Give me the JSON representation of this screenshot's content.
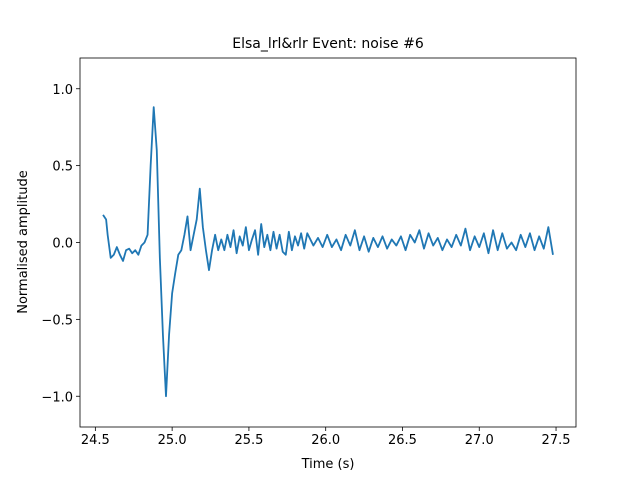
{
  "chart_data": {
    "type": "line",
    "title": "Elsa_lrl&rlr Event: noise #6",
    "xlabel": "Time (s)",
    "ylabel": "Normalised amplitude",
    "color": "#1f77b4",
    "xlim": [
      24.4,
      27.63
    ],
    "ylim": [
      -1.2,
      1.2
    ],
    "xticks": [
      24.5,
      {
        "value": 25,
        "label": "25.0"
      },
      25.5,
      {
        "value": 26,
        "label": "26.0"
      },
      26.5,
      {
        "value": 27,
        "label": "27.0"
      },
      27.5
    ],
    "yticks": [
      {
        "value": -1,
        "label": "−1.0"
      },
      {
        "value": -0.5,
        "label": "−0.5"
      },
      {
        "value": 0,
        "label": "0.0"
      },
      0.5,
      {
        "value": 1,
        "label": "1.0"
      }
    ],
    "x": [
      24.55,
      24.57,
      24.58,
      24.6,
      24.62,
      24.64,
      24.66,
      24.68,
      24.7,
      24.72,
      24.74,
      24.76,
      24.78,
      24.8,
      24.82,
      24.84,
      24.86,
      24.88,
      24.9,
      24.92,
      24.94,
      24.96,
      24.98,
      25.0,
      25.02,
      25.04,
      25.06,
      25.08,
      25.1,
      25.12,
      25.14,
      25.16,
      25.18,
      25.2,
      25.22,
      25.24,
      25.26,
      25.28,
      25.3,
      25.32,
      25.34,
      25.36,
      25.38,
      25.4,
      25.42,
      25.44,
      25.46,
      25.48,
      25.5,
      25.52,
      25.54,
      25.56,
      25.58,
      25.6,
      25.62,
      25.64,
      25.66,
      25.68,
      25.7,
      25.72,
      25.74,
      25.76,
      25.78,
      25.8,
      25.82,
      25.84,
      25.86,
      25.88,
      25.92,
      25.95,
      25.98,
      26.01,
      26.04,
      26.07,
      26.1,
      26.13,
      26.16,
      26.19,
      26.22,
      26.25,
      26.28,
      26.31,
      26.34,
      26.37,
      26.4,
      26.43,
      26.46,
      26.49,
      26.52,
      26.55,
      26.58,
      26.61,
      26.64,
      26.67,
      26.7,
      26.73,
      26.76,
      26.79,
      26.82,
      26.85,
      26.88,
      26.91,
      26.94,
      26.97,
      27.0,
      27.03,
      27.06,
      27.09,
      27.12,
      27.15,
      27.18,
      27.21,
      27.24,
      27.27,
      27.3,
      27.33,
      27.36,
      27.39,
      27.42,
      27.45,
      27.47,
      27.48
    ],
    "values": [
      0.18,
      0.15,
      0.05,
      -0.1,
      -0.08,
      -0.03,
      -0.08,
      -0.12,
      -0.05,
      -0.04,
      -0.07,
      -0.05,
      -0.08,
      -0.02,
      0.0,
      0.05,
      0.5,
      0.88,
      0.6,
      -0.1,
      -0.6,
      -1.0,
      -0.6,
      -0.33,
      -0.2,
      -0.08,
      -0.05,
      0.05,
      0.17,
      -0.05,
      0.05,
      0.15,
      0.35,
      0.1,
      -0.05,
      -0.18,
      -0.05,
      0.05,
      -0.05,
      0.02,
      -0.05,
      0.05,
      -0.03,
      0.08,
      -0.07,
      0.04,
      -0.02,
      0.1,
      -0.05,
      0.02,
      0.08,
      -0.08,
      0.12,
      -0.03,
      0.05,
      -0.05,
      0.07,
      -0.04,
      0.05,
      -0.06,
      -0.08,
      0.07,
      -0.05,
      0.04,
      -0.02,
      0.06,
      -0.04,
      0.06,
      -0.02,
      0.03,
      -0.03,
      0.05,
      -0.03,
      0.02,
      -0.05,
      0.05,
      -0.02,
      0.08,
      -0.05,
      0.04,
      -0.06,
      0.03,
      -0.03,
      0.04,
      -0.04,
      0.02,
      -0.02,
      0.04,
      -0.05,
      0.05,
      0.0,
      0.08,
      -0.04,
      0.06,
      -0.02,
      0.03,
      -0.05,
      0.02,
      -0.03,
      0.05,
      -0.02,
      0.09,
      -0.05,
      0.04,
      -0.03,
      0.06,
      -0.07,
      0.08,
      -0.05,
      0.06,
      -0.04,
      0.0,
      -0.05,
      0.05,
      -0.03,
      0.06,
      -0.05,
      0.04,
      -0.04,
      0.1,
      -0.02,
      -0.08
    ]
  }
}
